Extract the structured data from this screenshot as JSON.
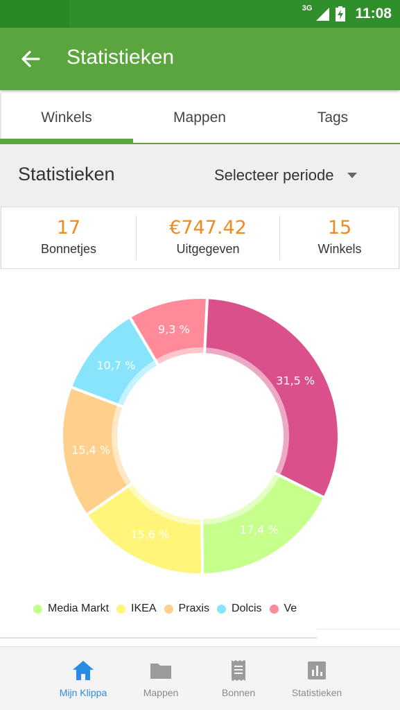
{
  "status_bar": {
    "network": "3G",
    "time": "11:08"
  },
  "app_bar": {
    "title": "Statistieken"
  },
  "tabs": [
    {
      "label": "Winkels",
      "selected": true
    },
    {
      "label": "Mappen",
      "selected": false
    },
    {
      "label": "Tags",
      "selected": false
    }
  ],
  "header": {
    "title": "Statistieken",
    "period_label": "Selecteer periode"
  },
  "stats": [
    {
      "value": "17",
      "label": "Bonnetjes"
    },
    {
      "value": "€747.42",
      "label": "Uitgegeven"
    },
    {
      "value": "15",
      "label": "Winkels"
    }
  ],
  "chart_data": {
    "type": "pie",
    "series": [
      {
        "name": "Ve",
        "value": 31.5,
        "label": "31,5 %",
        "color": "#d9508a"
      },
      {
        "name": "Media Markt",
        "value": 17.4,
        "label": "17,4 %",
        "color": "#c6ff8c"
      },
      {
        "name": "IKEA",
        "value": 15.6,
        "label": "15,6 %",
        "color": "#fff57a"
      },
      {
        "name": "Praxis",
        "value": 15.4,
        "label": "15,4 %",
        "color": "#ffd08c"
      },
      {
        "name": "Dolcis",
        "value": 10.7,
        "label": "10,7 %",
        "color": "#88e4fb"
      },
      {
        "name": "Ve",
        "value": 9.3,
        "label": "9,3 %",
        "color": "#ff8a9a"
      }
    ],
    "legend": [
      "Media Markt",
      "IKEA",
      "Praxis",
      "Dolcis",
      "Ve"
    ],
    "legend_colors": [
      "#c6ff8c",
      "#fff57a",
      "#ffd08c",
      "#88e4fb",
      "#ff8a9a"
    ],
    "legend_position": "bottom-left",
    "donut": true
  },
  "bottom_nav": [
    {
      "label": "Mijn Klippa",
      "icon": "home-icon",
      "active": true
    },
    {
      "label": "Mappen",
      "icon": "folder-icon",
      "active": false
    },
    {
      "label": "Bonnen",
      "icon": "receipt-icon",
      "active": false
    },
    {
      "label": "Statistieken",
      "icon": "bar-chart-icon",
      "active": false
    }
  ],
  "colors": {
    "status_bar": "#2f8f2a",
    "app_bar": "#5aa53d",
    "accent_orange": "#f08a1c",
    "nav_active": "#2b8ae6"
  }
}
